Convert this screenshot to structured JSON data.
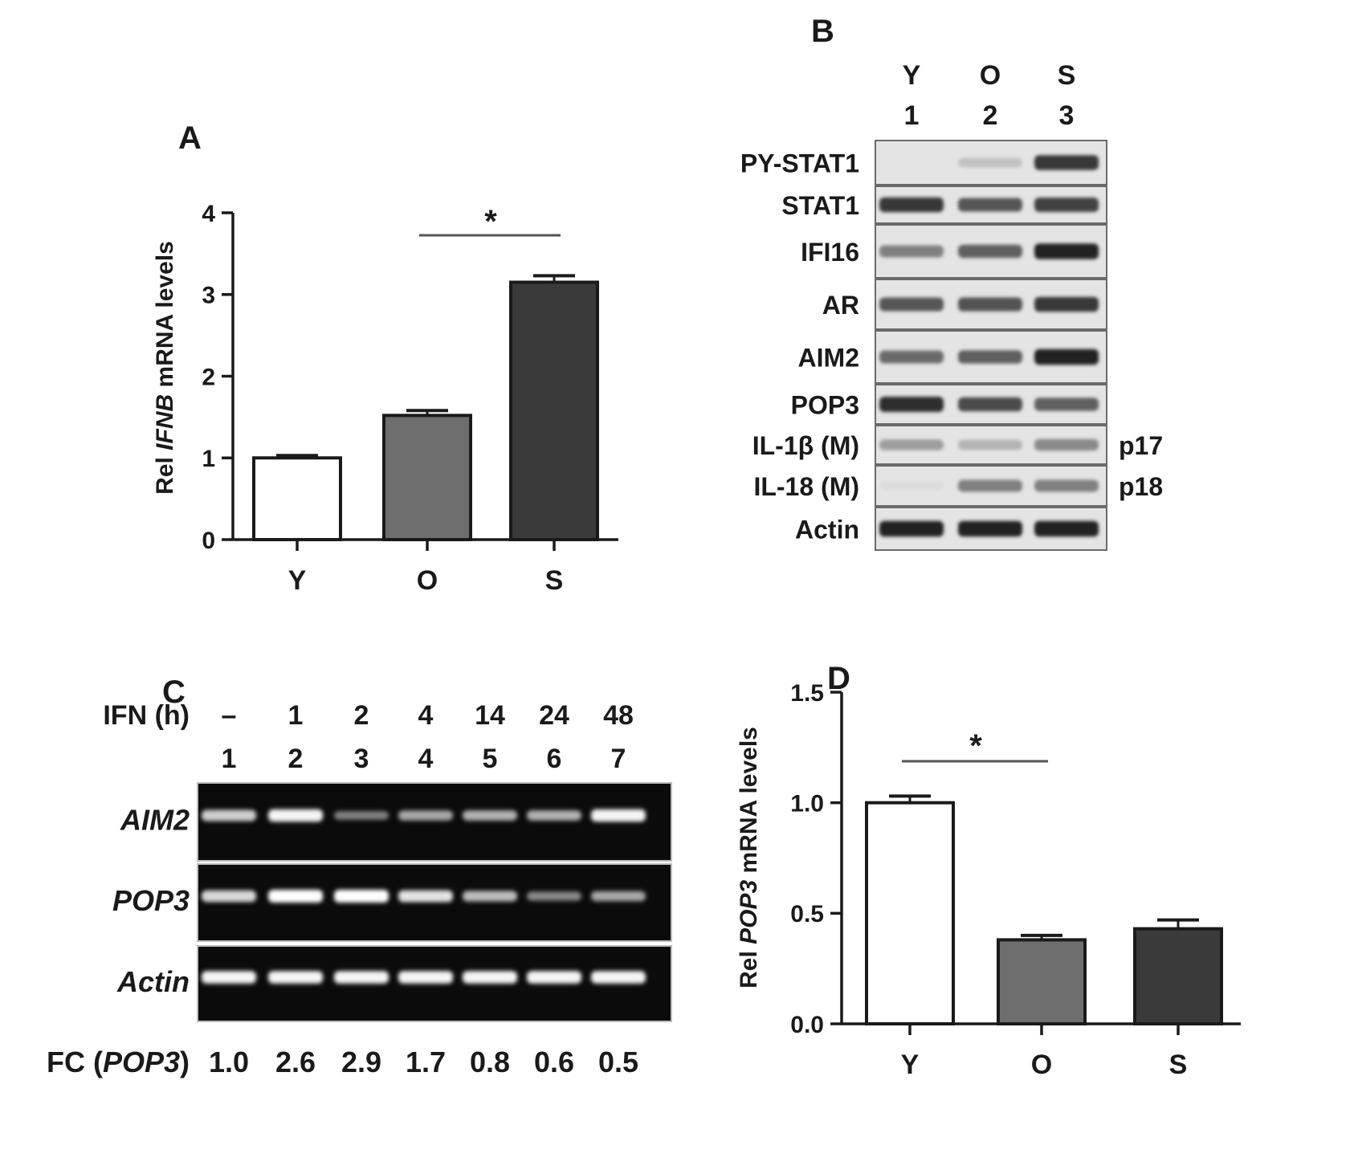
{
  "panels": {
    "A": {
      "letter": "A",
      "chart_data": {
        "type": "bar",
        "categories": [
          "Y",
          "O",
          "S"
        ],
        "values": [
          1.0,
          1.52,
          3.15
        ],
        "errors": [
          0.03,
          0.06,
          0.08
        ],
        "ylabel_pre": "Rel ",
        "ylabel_gene": "IFNB",
        "ylabel_post": " mRNA levels",
        "ylim": [
          0,
          4
        ],
        "yticks": [
          "0",
          "1",
          "2",
          "3",
          "4"
        ],
        "bar_colors": [
          "#ffffff",
          "#6e6e6e",
          "#3a3a3a"
        ],
        "significance": {
          "from": "O",
          "to": "S",
          "label": "*"
        }
      }
    },
    "B": {
      "letter": "B",
      "lane_groups": [
        "Y",
        "O",
        "S"
      ],
      "lane_numbers": [
        "1",
        "2",
        "3"
      ],
      "rows": [
        {
          "label": "PY-STAT1",
          "intensity": [
            0.0,
            0.18,
            0.85
          ],
          "side": ""
        },
        {
          "label": "STAT1",
          "intensity": [
            0.85,
            0.7,
            0.8
          ],
          "side": ""
        },
        {
          "label": "IFI16",
          "intensity": [
            0.5,
            0.65,
            0.95
          ],
          "side": ""
        },
        {
          "label": "AR",
          "intensity": [
            0.7,
            0.72,
            0.85
          ],
          "side": ""
        },
        {
          "label": "AIM2",
          "intensity": [
            0.6,
            0.65,
            0.95
          ],
          "side": ""
        },
        {
          "label": "POP3",
          "intensity": [
            0.9,
            0.75,
            0.65
          ],
          "side": ""
        },
        {
          "label": "IL-1β (M)",
          "intensity": [
            0.35,
            0.25,
            0.45
          ],
          "side": "p17"
        },
        {
          "label": "IL-18 (M)",
          "intensity": [
            0.05,
            0.5,
            0.5
          ],
          "side": "p18"
        },
        {
          "label": "Actin",
          "intensity": [
            0.95,
            0.95,
            0.95
          ],
          "side": ""
        }
      ]
    },
    "C": {
      "letter": "C",
      "ifn_label": "IFN (h)",
      "timepoints": [
        "–",
        "1",
        "2",
        "4",
        "14",
        "24",
        "48"
      ],
      "lane_numbers": [
        "1",
        "2",
        "3",
        "4",
        "5",
        "6",
        "7"
      ],
      "rows": [
        {
          "label": "AIM2",
          "intensity": [
            0.75,
            0.95,
            0.35,
            0.55,
            0.6,
            0.6,
            0.95
          ]
        },
        {
          "label": "POP3",
          "intensity": [
            0.8,
            1.0,
            1.0,
            0.85,
            0.65,
            0.4,
            0.55
          ]
        },
        {
          "label": "Actin",
          "intensity": [
            0.95,
            0.95,
            0.95,
            0.95,
            0.95,
            0.95,
            0.95
          ]
        }
      ],
      "fc_label_pre": "FC (",
      "fc_label_gene": "POP3",
      "fc_label_post": ")",
      "fc_values": [
        "1.0",
        "2.6",
        "2.9",
        "1.7",
        "0.8",
        "0.6",
        "0.5"
      ]
    },
    "D": {
      "letter": "D",
      "chart_data": {
        "type": "bar",
        "categories": [
          "Y",
          "O",
          "S"
        ],
        "values": [
          1.0,
          0.38,
          0.43
        ],
        "errors": [
          0.03,
          0.02,
          0.04
        ],
        "ylabel_pre": "Rel ",
        "ylabel_gene": "POP3",
        "ylabel_post": " mRNA levels",
        "ylim": [
          0,
          1.5
        ],
        "yticks": [
          "0.0",
          "0.5",
          "1.0",
          "1.5"
        ],
        "bar_colors": [
          "#ffffff",
          "#6e6e6e",
          "#3a3a3a"
        ],
        "significance": {
          "from": "Y",
          "to": "O",
          "label": "*"
        }
      }
    }
  }
}
